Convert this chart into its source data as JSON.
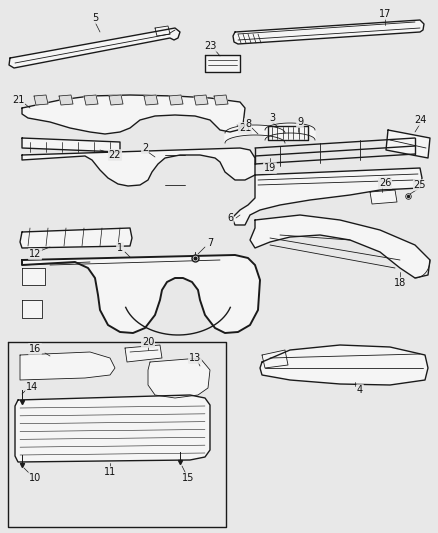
{
  "bg_color": "#e8e8e8",
  "line_color": "#1a1a1a",
  "label_color": "#111111",
  "figure_width": 4.39,
  "figure_height": 5.33,
  "dpi": 100,
  "label_fontsize": 7.0
}
